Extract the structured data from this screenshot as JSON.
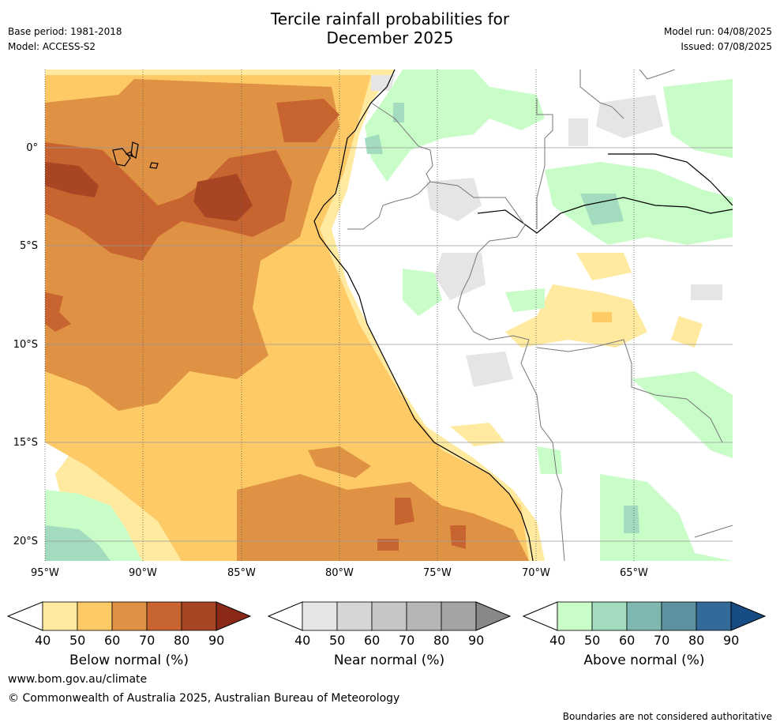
{
  "header": {
    "title_line1": "Tercile rainfall probabilities for",
    "title_line2": "December 2025",
    "base_period": "Base period: 1981-2018",
    "model": "Model: ACCESS-S2",
    "model_run": "Model run: 04/08/2025",
    "issued": "Issued: 07/08/2025"
  },
  "map": {
    "lat_labels": [
      "0°",
      "5°S",
      "10°S",
      "15°S",
      "20°S"
    ],
    "lon_labels": [
      "95°W",
      "90°W",
      "85°W",
      "80°W",
      "75°W",
      "70°W",
      "65°W"
    ]
  },
  "legends": [
    {
      "label": "Below normal (%)",
      "ticks": [
        "40",
        "50",
        "60",
        "70",
        "80",
        "90"
      ],
      "colors": [
        "#ffeaa0",
        "#fdca66",
        "#df9144",
        "#c8642f",
        "#a84624",
        "#8a2a16"
      ]
    },
    {
      "label": "Near normal (%)",
      "ticks": [
        "40",
        "50",
        "60",
        "70",
        "80",
        "90"
      ],
      "colors": [
        "#e5e5e5",
        "#d6d6d6",
        "#c6c6c6",
        "#b6b6b6",
        "#a3a3a3",
        "#888888"
      ]
    },
    {
      "label": "Above normal (%)",
      "ticks": [
        "40",
        "50",
        "60",
        "70",
        "80",
        "90"
      ],
      "colors": [
        "#c8fdc8",
        "#a2dbbd",
        "#7eb8b1",
        "#5c929f",
        "#336a9a",
        "#174c82"
      ]
    }
  ],
  "footer": {
    "website": "www.bom.gov.au/climate",
    "copyright": "© Commonwealth of Australia 2025, Australian Bureau of Meteorology",
    "disclaimer": "Boundaries are not considered authoritative"
  }
}
